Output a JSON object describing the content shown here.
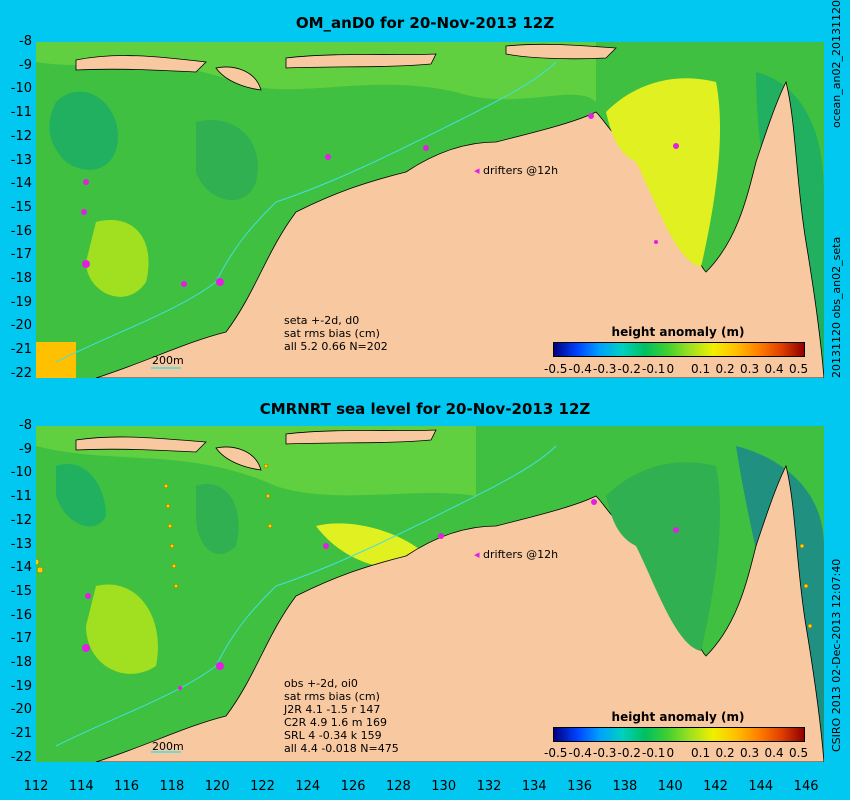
{
  "panels": [
    {
      "title": "OM_anD0 for 20-Nov-2013 12Z",
      "stats": [
        "seta +-2d, d0",
        "sat rms bias (cm)",
        "all 5.2 0.66 N=202"
      ],
      "drifters": "drifters @12h",
      "scalebar": "200m",
      "side_label": "20131120 obs_an02_seta",
      "side_label_top": "ocean_an02_20131120"
    },
    {
      "title": "CMRNRT sea level  for 20-Nov-2013 12Z",
      "stats": [
        "obs +-2d, oi0",
        "sat rms bias (cm)",
        "J2R   4.1  -1.5 r 147",
        "C2R   4.9  1.6 m 169",
        "SRL   4   -0.34 k 159",
        "all   4.4  -0.018 N=475"
      ],
      "drifters": "drifters @12h",
      "scalebar": "200m",
      "side_label": "CSIRO 2013  02-Dec-2013 12:07:40"
    }
  ],
  "colorbar": {
    "title": "height anomaly (m)",
    "labels": [
      "-0.5",
      "-0.4",
      "-0.3",
      "-0.2",
      "-0.1",
      "0",
      "0.1",
      "0.2",
      "0.3",
      "0.4",
      "0.5"
    ]
  },
  "y_ticks": [
    "-8",
    "-9",
    "-10",
    "-11",
    "-12",
    "-13",
    "-14",
    "-15",
    "-16",
    "-17",
    "-18",
    "-19",
    "-20",
    "-21",
    "-22"
  ],
  "x_ticks": [
    "112",
    "114",
    "116",
    "118",
    "120",
    "122",
    "124",
    "126",
    "128",
    "130",
    "132",
    "134",
    "136",
    "138",
    "140",
    "142",
    "144",
    "146"
  ],
  "colors": {
    "land": "#f8c8a0",
    "background": "#00c8f0",
    "drifter": "#e020e0"
  }
}
